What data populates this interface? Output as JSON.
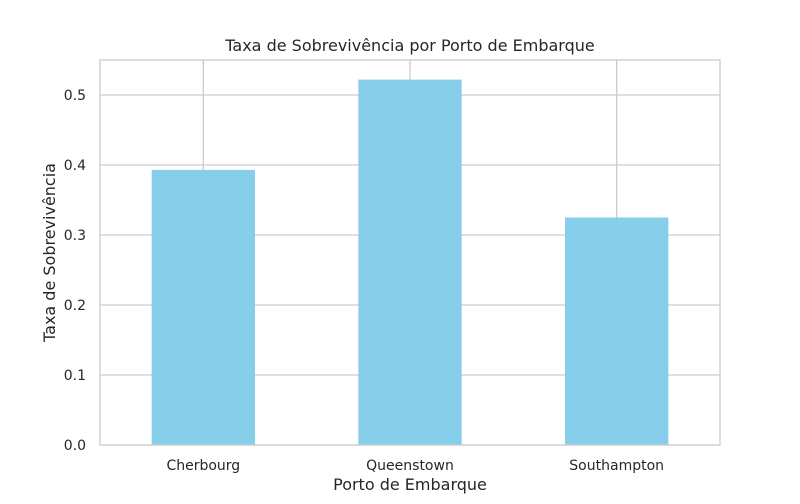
{
  "chart_data": {
    "type": "bar",
    "title": "Taxa de Sobrevivência por Porto de Embarque",
    "xlabel": "Porto de Embarque",
    "ylabel": "Taxa de Sobrevivência",
    "categories": [
      "Cherbourg",
      "Queenstown",
      "Southampton"
    ],
    "values": [
      0.393,
      0.522,
      0.325
    ],
    "ylim": [
      0,
      0.55
    ],
    "yticks": [
      0.0,
      0.1,
      0.2,
      0.3,
      0.4,
      0.5
    ],
    "ytick_labels": [
      "0.0",
      "0.1",
      "0.2",
      "0.3",
      "0.4",
      "0.5"
    ],
    "grid": true,
    "legend": "none",
    "colors": {
      "bar": "#87ceeb",
      "grid": "#cccccc",
      "frame": "#cccccc",
      "text": "#262626"
    }
  }
}
